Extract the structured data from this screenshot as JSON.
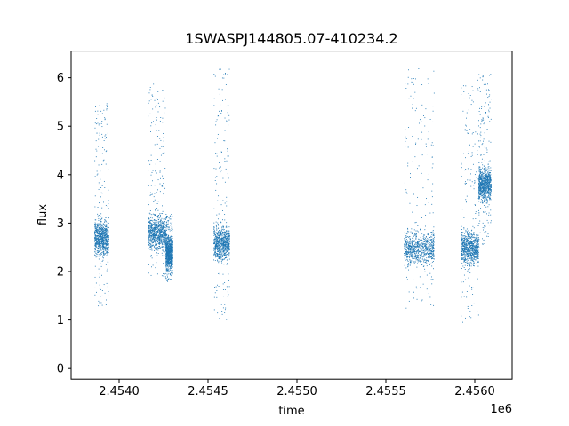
{
  "chart_data": {
    "type": "scatter",
    "title": "1SWASPJ144805.07-410234.2",
    "xlabel": "time",
    "ylabel": "flux",
    "x_offset_label": "1e6",
    "xlim": [
      2453730,
      2456210
    ],
    "ylim": [
      -0.22,
      6.55
    ],
    "x_ticks": [
      2454000,
      2454500,
      2455000,
      2455500,
      2456000
    ],
    "x_tick_labels": [
      "2.4540",
      "2.4545",
      "2.4550",
      "2.4555",
      "2.4560"
    ],
    "y_ticks": [
      0,
      1,
      2,
      3,
      4,
      5,
      6
    ],
    "y_tick_labels": [
      "0",
      "1",
      "2",
      "3",
      "4",
      "5",
      "6"
    ],
    "grid": false,
    "marker_color": "#1f77b4",
    "series": [
      {
        "segments": [
          {
            "x_start": 2453860,
            "x_end": 2453940,
            "flux_low": 1.3,
            "flux_high": 5.5,
            "flux_center": 2.7
          },
          {
            "x_start": 2454160,
            "x_end": 2454260,
            "flux_low": 1.9,
            "flux_high": 5.9,
            "flux_center": 2.8
          },
          {
            "x_start": 2454260,
            "x_end": 2454300,
            "flux_low": 1.8,
            "flux_high": 3.2,
            "flux_center": 2.4
          },
          {
            "x_start": 2454530,
            "x_end": 2454620,
            "flux_low": 1.0,
            "flux_high": 6.2,
            "flux_center": 2.6
          },
          {
            "x_start": 2455600,
            "x_end": 2455770,
            "flux_low": 1.2,
            "flux_high": 6.2,
            "flux_center": 2.5
          },
          {
            "x_start": 2455920,
            "x_end": 2456020,
            "flux_low": 0.9,
            "flux_high": 6.0,
            "flux_center": 2.5
          },
          {
            "x_start": 2456020,
            "x_end": 2456090,
            "flux_low": 2.5,
            "flux_high": 6.1,
            "flux_center": 3.8
          }
        ]
      }
    ]
  }
}
